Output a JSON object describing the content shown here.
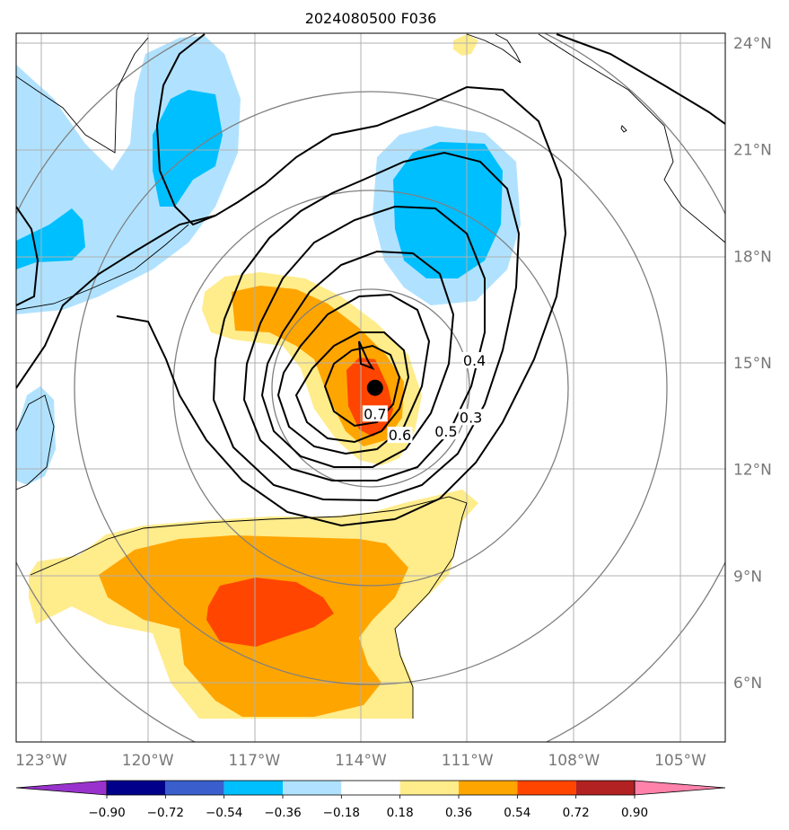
{
  "title": "2024080500 F036",
  "chart_data": {
    "type": "contour",
    "title": "2024080500 F036",
    "xlabel": "",
    "ylabel": "",
    "x_range": [
      -123.6,
      -103.1
    ],
    "y_range": [
      4.1,
      24.2
    ],
    "x_ticks": [
      "123°W",
      "120°W",
      "117°W",
      "114°W",
      "111°W",
      "108°W",
      "105°W"
    ],
    "x_tick_values": [
      -123,
      -120,
      -117,
      -114,
      -111,
      -108,
      -105
    ],
    "y_ticks": [
      "24°N",
      "21°N",
      "18°N",
      "15°N",
      "12°N",
      "9°N",
      "6°N"
    ],
    "y_tick_values": [
      24,
      21,
      18,
      15,
      12,
      9,
      6
    ],
    "grid": true,
    "storm_center": {
      "lon": -113.6,
      "lat": 14.3
    },
    "contour_labels": [
      {
        "text": "0.7",
        "lon": -113.6,
        "lat": 13.5
      },
      {
        "text": "0.6",
        "lon": -112.9,
        "lat": 12.9
      },
      {
        "text": "0.5",
        "lon": -111.6,
        "lat": 13.0
      },
      {
        "text": "0.4",
        "lon": -110.8,
        "lat": 15.0
      },
      {
        "text": "0.3",
        "lon": -110.9,
        "lat": 13.4
      }
    ],
    "colorbar": {
      "boundaries": [
        "−0.90",
        "−0.72",
        "−0.54",
        "−0.36",
        "−0.18",
        "0.18",
        "0.36",
        "0.54",
        "0.72",
        "0.90"
      ],
      "colors": [
        "#9932CC",
        "#00008B",
        "#3A5FCD",
        "#00BFFF",
        "#B0E2FF",
        "#FFFFFF",
        "#FFEC8B",
        "#FFA500",
        "#FF4500",
        "#B22222",
        "#FF82AB"
      ],
      "extend": "both"
    }
  }
}
